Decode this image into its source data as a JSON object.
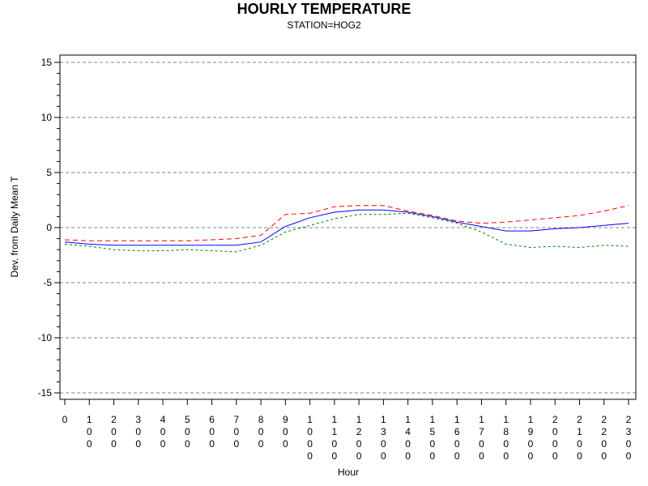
{
  "chart_data": {
    "type": "line",
    "title": "HOURLY TEMPERATURE",
    "subtitle": "STATION=HOG2",
    "xlabel": "Hour",
    "ylabel": "Dev. from Daily Mean T",
    "ylim": [
      -15,
      15
    ],
    "yticks": [
      "-15",
      "-10",
      "-5",
      "0",
      "5",
      "10",
      "15"
    ],
    "grid": "horizontal-dashed-at-major-ticks",
    "x": [
      0,
      100,
      200,
      300,
      400,
      500,
      600,
      700,
      800,
      900,
      1000,
      1100,
      1200,
      1300,
      1400,
      1500,
      1600,
      1700,
      1800,
      1900,
      2000,
      2100,
      2200,
      2300
    ],
    "xtick_labels": [
      "0",
      "100",
      "200",
      "300",
      "400",
      "500",
      "600",
      "700",
      "800",
      "900",
      "1000",
      "1100",
      "1200",
      "1300",
      "1400",
      "1500",
      "1600",
      "1700",
      "1800",
      "1900",
      "2000",
      "2100",
      "2200",
      "2300"
    ],
    "series": [
      {
        "color": "#0000ff",
        "dash": "solid",
        "values": [
          -1.3,
          -1.5,
          -1.6,
          -1.6,
          -1.6,
          -1.6,
          -1.6,
          -1.6,
          -1.3,
          0.1,
          0.9,
          1.4,
          1.6,
          1.6,
          1.4,
          1.0,
          0.5,
          0.1,
          -0.3,
          -0.3,
          -0.1,
          0.0,
          0.2,
          0.4
        ]
      },
      {
        "color": "#ff0000",
        "dash": "long-dash",
        "values": [
          -1.1,
          -1.2,
          -1.2,
          -1.2,
          -1.2,
          -1.2,
          -1.1,
          -1.0,
          -0.7,
          1.2,
          1.3,
          1.9,
          2.0,
          2.0,
          1.5,
          1.1,
          0.6,
          0.4,
          0.5,
          0.7,
          0.9,
          1.1,
          1.5,
          2.0
        ]
      },
      {
        "color": "#008000",
        "dash": "short-dash",
        "values": [
          -1.5,
          -1.7,
          -2.0,
          -2.1,
          -2.1,
          -2.0,
          -2.1,
          -2.2,
          -1.6,
          -0.4,
          0.2,
          0.8,
          1.2,
          1.2,
          1.3,
          0.9,
          0.4,
          -0.4,
          -1.5,
          -1.8,
          -1.7,
          -1.8,
          -1.6,
          -1.7
        ]
      }
    ]
  }
}
